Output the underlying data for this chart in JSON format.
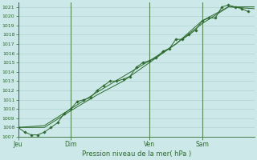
{
  "xlabel": "Pression niveau de la mer( hPa )",
  "background_color": "#cce8e8",
  "grid_color": "#aacccc",
  "line_color": "#2d6a2d",
  "vline_color": "#5a8a5a",
  "ylim": [
    1007,
    1021.5
  ],
  "yticks": [
    1007,
    1008,
    1009,
    1010,
    1011,
    1012,
    1013,
    1014,
    1015,
    1016,
    1017,
    1018,
    1019,
    1020,
    1021
  ],
  "day_labels": [
    "Jeu",
    "Dim",
    "Ven",
    "Sam"
  ],
  "day_positions": [
    0,
    48,
    120,
    168
  ],
  "xlim": [
    0,
    216
  ],
  "series1_x": [
    0,
    6,
    12,
    18,
    24,
    30,
    36,
    42,
    48,
    54,
    60,
    66,
    72,
    78,
    84,
    90,
    96,
    102,
    108,
    114,
    120,
    126,
    132,
    138,
    144,
    150,
    156,
    162,
    168,
    174,
    180,
    186,
    192,
    198,
    204,
    210
  ],
  "series1_y": [
    1008.0,
    1007.5,
    1007.2,
    1007.2,
    1007.5,
    1008.0,
    1008.5,
    1009.5,
    1010.0,
    1010.8,
    1011.0,
    1011.2,
    1012.0,
    1012.5,
    1013.0,
    1013.0,
    1013.2,
    1013.5,
    1014.5,
    1015.0,
    1015.2,
    1015.5,
    1016.2,
    1016.5,
    1017.5,
    1017.5,
    1018.0,
    1018.5,
    1019.5,
    1019.8,
    1019.8,
    1021.0,
    1021.2,
    1021.0,
    1020.8,
    1020.5
  ],
  "series2_x": [
    0,
    24,
    48,
    72,
    96,
    120,
    144,
    168,
    192,
    216
  ],
  "series2_y": [
    1008.0,
    1008.0,
    1009.8,
    1011.5,
    1013.0,
    1015.0,
    1017.0,
    1019.2,
    1021.0,
    1021.0
  ],
  "series3_x": [
    0,
    24,
    48,
    72,
    96,
    120,
    144,
    168,
    192,
    216
  ],
  "series3_y": [
    1008.0,
    1008.2,
    1010.0,
    1011.8,
    1013.5,
    1015.2,
    1017.0,
    1019.5,
    1021.0,
    1020.8
  ]
}
